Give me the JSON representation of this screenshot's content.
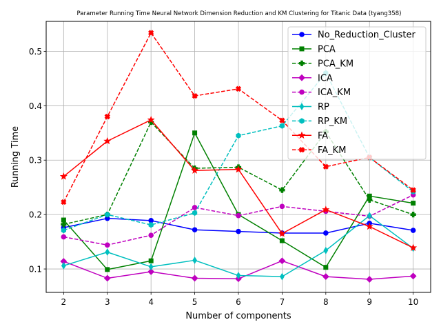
{
  "chart_data": {
    "type": "line",
    "title": "Parameter Running Time Neural Network Dimension Reduction and KM Clustering for Titanic Data (tyang358)",
    "xlabel": "Number of components",
    "ylabel": "Running Time",
    "x": [
      2,
      3,
      4,
      5,
      6,
      7,
      8,
      9,
      10
    ],
    "xlim": [
      1.6,
      10.4
    ],
    "ylim": [
      0.057,
      0.555
    ],
    "xticks": [
      2,
      3,
      4,
      5,
      6,
      7,
      8,
      9,
      10
    ],
    "yticks": [
      0.1,
      0.2,
      0.3,
      0.4,
      0.5
    ],
    "ytick_labels": [
      "0.1",
      "0.2",
      "0.3",
      "0.4",
      "0.5"
    ],
    "grid": true,
    "legend_position": "upper right",
    "series": [
      {
        "name": "No_Reduction_Cluster",
        "color": "#0000ff",
        "dash": "solid",
        "marker": "circle",
        "values": [
          0.176,
          0.193,
          0.189,
          0.172,
          0.169,
          0.166,
          0.166,
          0.184,
          0.171
        ]
      },
      {
        "name": "PCA",
        "color": "#008000",
        "dash": "solid",
        "marker": "square",
        "values": [
          0.19,
          0.099,
          0.115,
          0.35,
          0.2,
          0.152,
          0.103,
          0.234,
          0.221
        ]
      },
      {
        "name": "PCA_KM",
        "color": "#008000",
        "dash": "dashed",
        "marker": "plus",
        "values": [
          0.182,
          0.2,
          0.37,
          0.285,
          0.287,
          0.245,
          0.352,
          0.227,
          0.2
        ]
      },
      {
        "name": "ICA",
        "color": "#bf00bf",
        "dash": "solid",
        "marker": "diamond",
        "values": [
          0.114,
          0.083,
          0.095,
          0.083,
          0.082,
          0.115,
          0.086,
          0.081,
          0.087
        ]
      },
      {
        "name": "ICA_KM",
        "color": "#bf00bf",
        "dash": "dashed",
        "marker": "circle",
        "values": [
          0.159,
          0.144,
          0.162,
          0.213,
          0.198,
          0.215,
          0.206,
          0.197,
          0.236
        ]
      },
      {
        "name": "RP",
        "color": "#00bfbf",
        "dash": "solid",
        "marker": "thin_diamond",
        "values": [
          0.106,
          0.131,
          0.104,
          0.116,
          0.088,
          0.086,
          0.134,
          0.198,
          0.138
        ]
      },
      {
        "name": "RP_KM",
        "color": "#00bfbf",
        "dash": "dashed",
        "marker": "hexagon",
        "values": [
          0.171,
          0.2,
          0.181,
          0.203,
          0.345,
          0.363,
          0.46,
          0.305,
          0.242
        ]
      },
      {
        "name": "FA",
        "color": "#ff0000",
        "dash": "solid",
        "marker": "star",
        "values": [
          0.27,
          0.335,
          0.374,
          0.281,
          0.283,
          0.165,
          0.209,
          0.178,
          0.139
        ]
      },
      {
        "name": "FA_KM",
        "color": "#ff0000",
        "dash": "dashed",
        "marker": "x",
        "values": [
          0.223,
          0.38,
          0.534,
          0.418,
          0.431,
          0.373,
          0.288,
          0.305,
          0.245
        ]
      }
    ]
  }
}
